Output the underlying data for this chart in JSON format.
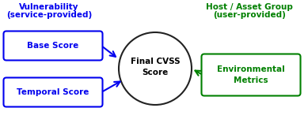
{
  "title_left_line1": "Vulnerability",
  "title_left_line2": "(service-provided)",
  "title_right_line1": "Host / Asset Group",
  "title_right_line2": "(user-provided)",
  "box_left_top": "Base Score",
  "box_left_bottom": "Temporal Score",
  "box_right_line1": "Environmental",
  "box_right_line2": "Metrics",
  "circle_label": "Final CVSS\nScore",
  "blue": "#0000EE",
  "green": "#008000",
  "bg_color": "#FFFFFF",
  "circle_edge": "#222222",
  "fig_w": 3.89,
  "fig_h": 1.7,
  "dpi": 100
}
